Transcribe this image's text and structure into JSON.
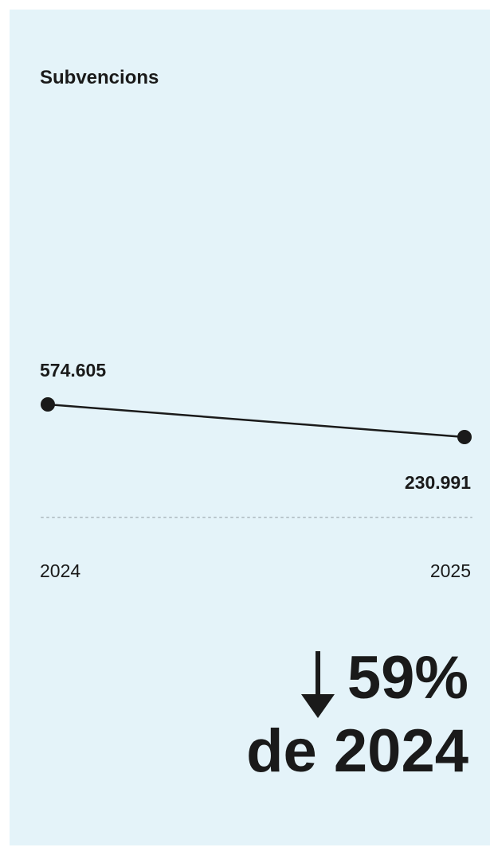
{
  "chart_data": {
    "type": "line",
    "title": "Subvencions",
    "categories": [
      "2024",
      "2025"
    ],
    "series": [
      {
        "values": [
          574605,
          230991
        ]
      }
    ],
    "value_labels": [
      "574.605",
      "230.991"
    ],
    "ylim": [
      0,
      574605
    ],
    "grid": false,
    "baseline": "dotted"
  },
  "summary": {
    "direction": "down",
    "change_text": "59%",
    "reference_text": "de 2024"
  },
  "colors": {
    "background": "#e4f3f9",
    "text": "#1a1a1a",
    "baseline": "#b9c6cc"
  },
  "icons": {
    "change_icon": "arrow-down-icon"
  }
}
